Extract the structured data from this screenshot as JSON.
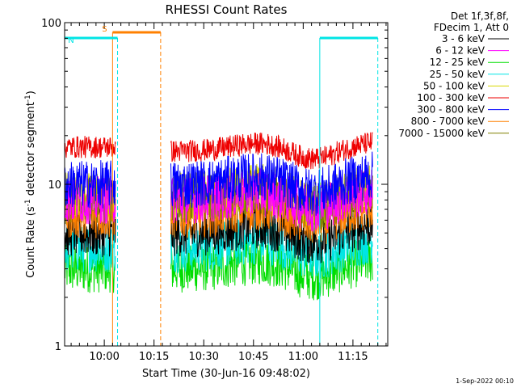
{
  "chart_data": {
    "type": "line",
    "title": "RHESSI Count Rates",
    "xlabel": "Start Time (30-Jun-16 09:48:02)",
    "ylabel_main": "Count Rate (s",
    "ylabel_exp1": "-1",
    "ylabel_mid": " detector segment",
    "ylabel_exp2": "-1",
    "ylabel_end": ")",
    "yscale": "log",
    "ylim": [
      1,
      100
    ],
    "xlim": [
      "09:48:02",
      "11:25:30"
    ],
    "x_tick_labels": [
      "10:00",
      "10:15",
      "10:30",
      "10:45",
      "11:00",
      "11:15"
    ],
    "y_tick_labels": [
      "1",
      "10",
      "100"
    ],
    "legend_header": [
      "Det 1f,3f,8f,",
      "FDecim 1, Att 0"
    ],
    "legend_position": "top-right outside",
    "data_gaps": [
      [
        "10:03:30",
        "10:20:00"
      ],
      [
        "11:21:00",
        "11:25:30"
      ]
    ],
    "series": [
      {
        "name": "3 - 6 keV",
        "color": "#000000",
        "level_before_gap": 5.0,
        "level_after_gap": 5.0
      },
      {
        "name": "6 - 12 keV",
        "color": "#ff00ff",
        "level_before_gap": 8.0,
        "level_after_gap": 8.0
      },
      {
        "name": "12 - 25 keV",
        "color": "#00dd00",
        "level_before_gap": 3.0,
        "level_after_gap": 3.0
      },
      {
        "name": "25 - 50 keV",
        "color": "#00e5e5",
        "level_before_gap": 4.0,
        "level_after_gap": 4.0
      },
      {
        "name": "50 - 100 keV",
        "color": "#d8d800",
        "level_before_gap": 8.5,
        "level_after_gap": 8.5
      },
      {
        "name": "100 - 300 keV",
        "color": "#ee0000",
        "level_before_gap": 17.0,
        "level_after_gap": 16.0
      },
      {
        "name": "300 - 800 keV",
        "color": "#0000ff",
        "level_before_gap": 10.0,
        "level_after_gap": 10.0
      },
      {
        "name": "800 - 7000 keV",
        "color": "#ff8000",
        "level_before_gap": 6.5,
        "level_after_gap": 6.5
      },
      {
        "name": "7000 - 15000 keV",
        "color": "#808000",
        "level_before_gap": 8.0,
        "level_after_gap": 8.0
      }
    ],
    "event_markers": [
      {
        "label": "S",
        "color": "#ff8000",
        "start": "10:02:30",
        "end": "10:17:00"
      },
      {
        "label": "N",
        "color": "#00e5e5",
        "start": "09:48:02",
        "end": "10:04:00"
      },
      {
        "label": "",
        "color": "#00e5e5",
        "start": "11:05:00",
        "end": "11:22:30"
      }
    ]
  },
  "footer": {
    "date_stamp": "1-Sep-2022 00:10"
  }
}
